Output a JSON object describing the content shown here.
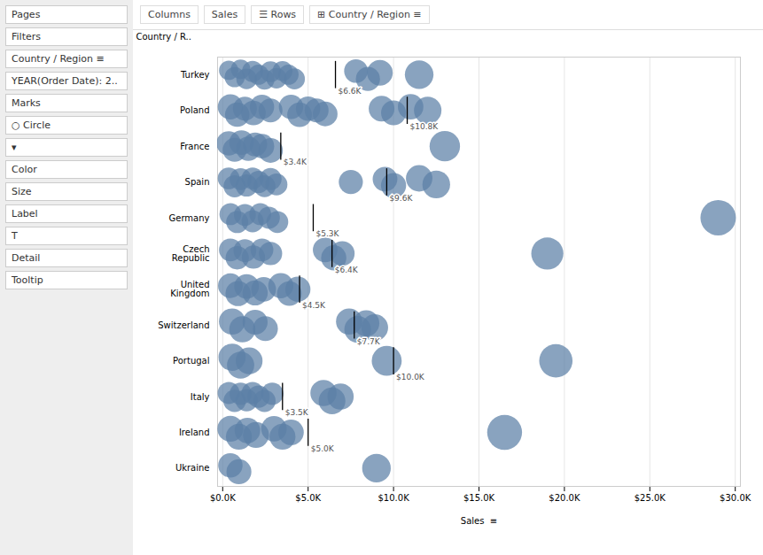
{
  "chart_data": {
    "type": "scatter",
    "color": "#5b7fa6",
    "x_label": "Sales  ≡",
    "y_label": "Country / R..",
    "annotations": [
      "Pages",
      "Filters",
      "Country / Region  ≡",
      "YEAR(Order Date): 2..",
      "Marks",
      "○  Circle",
      "▾",
      "Color",
      "Size",
      "Label",
      "T",
      "Detail",
      "Tooltip",
      "Columns",
      "Sales",
      "☰  Rows",
      "⊞ Country / Region ≡"
    ],
    "categories": [
      "Turkey",
      "Poland",
      "France",
      "Spain",
      "Germany",
      "Czech\nRepublic",
      "United\nKingdom",
      "Switzerland",
      "Portugal",
      "Italy",
      "Ireland",
      "Ukraine"
    ],
    "values": [
      [
        350,
        700,
        1050,
        1400,
        1750,
        2100,
        2450,
        2800,
        3150,
        3500,
        3850,
        4200,
        7800,
        8500,
        9200,
        11500
      ],
      [
        450,
        850,
        1300,
        1800,
        2300,
        2800,
        4000,
        4500,
        5000,
        5500,
        6000,
        9300,
        10000,
        11000,
        12000
      ],
      [
        350,
        700,
        1100,
        1500,
        1900,
        2300,
        2800,
        13000
      ],
      [
        350,
        700,
        1050,
        1400,
        1750,
        2100,
        2450,
        2800,
        3150,
        7500,
        9500,
        10000,
        11500,
        12500
      ],
      [
        450,
        850,
        1300,
        1750,
        2200,
        2700,
        3200,
        29000
      ],
      [
        450,
        850,
        1300,
        1800,
        2300,
        2800,
        6000,
        6500,
        7000,
        19000
      ],
      [
        450,
        900,
        1400,
        1900,
        2400,
        3400,
        3900,
        4400
      ],
      [
        550,
        1150,
        1900,
        2500,
        7400,
        7900,
        8400,
        8900
      ],
      [
        550,
        1050,
        1550,
        9600,
        19500
      ],
      [
        350,
        700,
        1050,
        1400,
        1750,
        2100,
        2450,
        2900,
        5900,
        6400,
        6900
      ],
      [
        450,
        950,
        1450,
        1950,
        3000,
        3500,
        4000,
        16500
      ],
      [
        450,
        950,
        9000
      ]
    ],
    "sizes": [
      [
        280,
        310,
        290,
        320,
        340,
        310,
        300,
        330,
        320,
        300,
        310,
        330,
        420,
        440,
        500,
        620
      ],
      [
        480,
        450,
        430,
        460,
        450,
        430,
        450,
        460,
        450,
        430,
        460,
        500,
        470,
        490,
        570
      ],
      [
        450,
        430,
        460,
        450,
        430,
        450,
        460,
        700
      ],
      [
        360,
        370,
        360,
        370,
        360,
        370,
        360,
        370,
        360,
        440,
        460,
        480,
        530,
        580
      ],
      [
        360,
        370,
        360,
        370,
        360,
        370,
        360,
        950
      ],
      [
        390,
        410,
        390,
        410,
        390,
        410,
        460,
        480,
        460,
        780
      ],
      [
        460,
        480,
        460,
        480,
        460,
        480,
        460,
        480
      ],
      [
        520,
        520,
        470,
        470,
        520,
        540,
        520,
        540
      ],
      [
        560,
        560,
        540,
        680,
        840
      ],
      [
        370,
        380,
        370,
        380,
        370,
        380,
        370,
        380,
        520,
        540,
        520
      ],
      [
        510,
        510,
        490,
        510,
        490,
        510,
        490,
        920
      ],
      [
        450,
        470,
        620
      ]
    ],
    "jitter": [
      [
        0.13,
        -0.06,
        0.16,
        -0.11,
        0.1,
        0.01,
        -0.13,
        0.09,
        -0.09,
        0.11,
        0.01,
        -0.11,
        0.11,
        -0.11,
        0.06,
        0.01
      ],
      [
        0.11,
        -0.11,
        0.06,
        -0.06,
        0.11,
        0.01,
        0.11,
        -0.11,
        0.06,
        0.01,
        -0.09,
        0.06,
        -0.06,
        0.11,
        0.01
      ],
      [
        0.09,
        -0.09,
        0.11,
        -0.06,
        0.06,
        0.01,
        -0.11,
        0.01
      ],
      [
        0.11,
        -0.11,
        0.09,
        -0.09,
        0.11,
        0.01,
        -0.11,
        0.09,
        -0.06,
        0.01,
        0.09,
        -0.09,
        0.11,
        -0.06
      ],
      [
        0.11,
        -0.11,
        0.09,
        -0.09,
        0.11,
        0.01,
        -0.11,
        0.01
      ],
      [
        0.11,
        -0.11,
        0.09,
        -0.09,
        0.11,
        0.01,
        0.11,
        -0.11,
        0.01,
        0.01
      ],
      [
        0.11,
        -0.11,
        0.09,
        -0.09,
        0.01,
        0.11,
        -0.11,
        0.01
      ],
      [
        0.11,
        -0.11,
        0.09,
        -0.09,
        0.11,
        -0.11,
        0.06,
        -0.06
      ],
      [
        0.11,
        -0.11,
        0.01,
        0.01,
        0.01
      ],
      [
        0.11,
        -0.11,
        0.09,
        -0.09,
        0.11,
        0.01,
        -0.11,
        0.09,
        0.11,
        -0.11,
        0.01
      ],
      [
        0.11,
        -0.11,
        0.06,
        -0.06,
        0.11,
        -0.11,
        0.01,
        0.01
      ],
      [
        0.09,
        -0.09,
        0.01
      ]
    ],
    "averages": [
      6600,
      10800,
      3400,
      9600,
      5300,
      6400,
      4500,
      7700,
      10000,
      3500,
      5000,
      null
    ],
    "value_labels": [
      "$6.6K",
      "$10.8K",
      "$3.4K",
      "$9.6K",
      "$5.3K",
      "$6.4K",
      "$4.5K",
      "$7.7K",
      "$10.0K",
      "$3.5K",
      "$5.0K",
      null
    ],
    "xlim": [
      -300,
      30300
    ],
    "xticks": [
      {
        "value": 0,
        "label": "$0.0K"
      },
      {
        "value": 5000,
        "label": "$5.0K"
      },
      {
        "value": 10000,
        "label": "$10.0K"
      },
      {
        "value": 15000,
        "label": "$15.0K"
      },
      {
        "value": 20000,
        "label": "$20.0K"
      },
      {
        "value": 25000,
        "label": "$25.0K"
      },
      {
        "value": 30000,
        "label": "$30.0K"
      }
    ],
    "grid": true
  }
}
